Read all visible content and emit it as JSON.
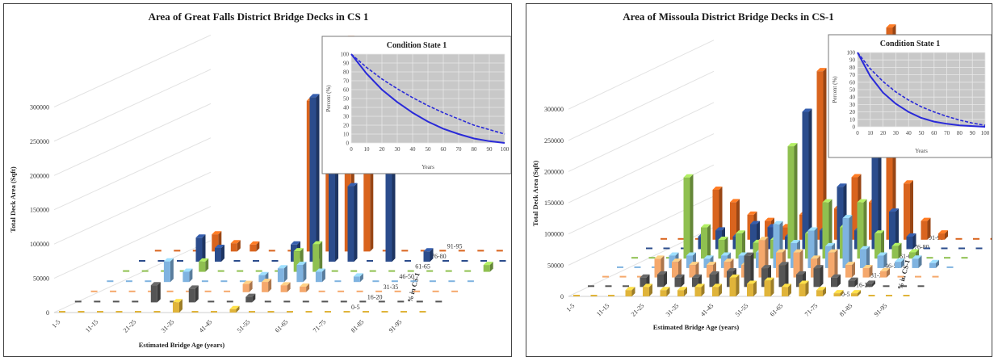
{
  "chart_data": [
    {
      "type": "bar",
      "title": "Area of Great Falls District  Bridge Decks in CS 1",
      "ylabel": "Total Deck Area (Sqft)",
      "xlabel": "Estimated Bridge Age (years)",
      "zlabel": "% in CS-1",
      "yticks": [
        "0",
        "50000",
        "100000",
        "150000",
        "200000",
        "250000",
        "300000"
      ],
      "ylim": [
        0,
        330000
      ],
      "age_categories": [
        "1-5",
        "11-15",
        "21-25",
        "31-35",
        "41-45",
        "51-55",
        "61-65",
        "71-75",
        "81-85",
        "91-95"
      ],
      "cs_categories": [
        "0-5",
        "16-20",
        "31-35",
        "46-50",
        "61-65",
        "76-80",
        "91-95"
      ],
      "series": [
        {
          "cs": "91-95",
          "color": "#d9641e",
          "values": [
            0,
            0,
            0,
            25000,
            12000,
            10000,
            0,
            0,
            220000,
            300000,
            310000,
            245000,
            0,
            0,
            0,
            0,
            0,
            0,
            0,
            45000
          ]
        },
        {
          "cs": "76-80",
          "color": "#2b4c8c",
          "values": [
            0,
            0,
            0,
            35000,
            20000,
            0,
            0,
            0,
            25000,
            240000,
            160000,
            110000,
            0,
            150000,
            0,
            15000,
            0,
            0,
            0,
            0
          ]
        },
        {
          "cs": "61-65",
          "color": "#8fc050",
          "values": [
            0,
            0,
            0,
            0,
            15000,
            0,
            0,
            0,
            0,
            30000,
            40000,
            0,
            0,
            0,
            0,
            0,
            0,
            0,
            0,
            10000
          ]
        },
        {
          "cs": "46-50",
          "color": "#7fb3e0",
          "values": [
            0,
            0,
            0,
            30000,
            15000,
            0,
            0,
            0,
            10000,
            20000,
            25000,
            15000,
            0,
            8000,
            0,
            0,
            0,
            0,
            0,
            0
          ]
        },
        {
          "cs": "31-35",
          "color": "#f5a86c",
          "values": [
            0,
            0,
            0,
            0,
            0,
            0,
            0,
            0,
            12000,
            15000,
            10000,
            8000,
            0,
            0,
            0,
            0,
            0,
            0,
            0,
            0
          ]
        },
        {
          "cs": "16-20",
          "color": "#555555",
          "values": [
            0,
            0,
            0,
            0,
            25000,
            0,
            20000,
            0,
            0,
            8000,
            0,
            0,
            0,
            0,
            0,
            0,
            0,
            0,
            0,
            0
          ]
        },
        {
          "cs": "0-5",
          "color": "#e0b43a",
          "values": [
            0,
            0,
            0,
            0,
            0,
            0,
            15000,
            0,
            0,
            5000,
            0,
            0,
            0,
            0,
            0,
            0,
            0,
            0,
            0,
            0
          ]
        }
      ],
      "inset": {
        "title": "Condition State 1",
        "xlabel": "Years",
        "ylabel": "Percent (%)",
        "xticks": [
          "0",
          "10",
          "20",
          "30",
          "40",
          "50",
          "60",
          "70",
          "80",
          "90",
          "100"
        ],
        "yticks": [
          "0",
          "10",
          "20",
          "30",
          "40",
          "50",
          "60",
          "70",
          "80",
          "90",
          "100"
        ],
        "x": [
          0,
          10,
          20,
          30,
          40,
          50,
          60,
          70,
          80,
          90,
          100
        ],
        "solid": [
          100,
          78,
          60,
          46,
          34,
          24,
          16,
          10,
          5,
          2,
          0
        ],
        "dashed": [
          100,
          85,
          72,
          61,
          51,
          42,
          34,
          27,
          20,
          15,
          10
        ]
      }
    },
    {
      "type": "bar",
      "title": "Area of Missoula  District  Bridge Decks in CS-1",
      "ylabel": "Total Deck Area (Sqft)",
      "xlabel": "Estimated  Bridge Age (years)",
      "zlabel": "% in CS-1",
      "yticks": [
        "0",
        "50000",
        "100000",
        "150000",
        "200000",
        "250000",
        "300000"
      ],
      "ylim": [
        0,
        330000
      ],
      "age_categories": [
        "1-5",
        "11-15",
        "21-25",
        "31-35",
        "41-45",
        "51-55",
        "61-65",
        "71-75",
        "81-85",
        "91-95"
      ],
      "cs_categories": [
        "0-5",
        "16-20",
        "31-35",
        "46-50",
        "61-65",
        "76-80",
        "91-95"
      ],
      "series": [
        {
          "cs": "91-95",
          "color": "#d9641e",
          "values": [
            0,
            0,
            0,
            80000,
            60000,
            40000,
            30000,
            20000,
            40000,
            270000,
            50000,
            100000,
            60000,
            340000,
            90000,
            30000,
            10000,
            0,
            0,
            0
          ]
        },
        {
          "cs": "76-80",
          "color": "#2b4c8c",
          "values": [
            0,
            0,
            0,
            20000,
            30000,
            20000,
            40000,
            35000,
            20000,
            220000,
            30000,
            100000,
            30000,
            170000,
            60000,
            20000,
            0,
            0,
            0,
            0
          ]
        },
        {
          "cs": "61-65",
          "color": "#8fc050",
          "values": [
            0,
            0,
            0,
            130000,
            50000,
            30000,
            40000,
            25000,
            30000,
            180000,
            40000,
            90000,
            50000,
            90000,
            40000,
            20000,
            10000,
            0,
            0,
            0
          ]
        },
        {
          "cs": "46-50",
          "color": "#7fb3e0",
          "values": [
            0,
            0,
            0,
            20000,
            20000,
            15000,
            20000,
            20000,
            25000,
            70000,
            40000,
            60000,
            35000,
            80000,
            30000,
            20000,
            10000,
            15000,
            8000,
            0
          ]
        },
        {
          "cs": "31-35",
          "color": "#f5a86c",
          "values": [
            0,
            0,
            0,
            30000,
            25000,
            20000,
            20000,
            25000,
            20000,
            60000,
            40000,
            40000,
            30000,
            40000,
            20000,
            15000,
            10000,
            0,
            0,
            0
          ]
        },
        {
          "cs": "16-20",
          "color": "#555555",
          "values": [
            0,
            0,
            0,
            15000,
            20000,
            15000,
            15000,
            20000,
            25000,
            50000,
            30000,
            35000,
            20000,
            30000,
            15000,
            10000,
            5000,
            0,
            0,
            0
          ]
        },
        {
          "cs": "0-5",
          "color": "#e0b43a",
          "values": [
            0,
            0,
            0,
            10000,
            15000,
            10000,
            10000,
            15000,
            15000,
            30000,
            20000,
            25000,
            15000,
            20000,
            10000,
            5000,
            5000,
            0,
            0,
            0
          ]
        }
      ],
      "inset": {
        "title": "Condition State 1",
        "xlabel": "Years",
        "ylabel": "Percent (%)",
        "xticks": [
          "0",
          "10",
          "20",
          "30",
          "40",
          "50",
          "60",
          "70",
          "80",
          "90",
          "100"
        ],
        "yticks": [
          "0",
          "10",
          "20",
          "30",
          "40",
          "50",
          "60",
          "70",
          "80",
          "90",
          "100"
        ],
        "x": [
          0,
          10,
          20,
          30,
          40,
          50,
          60,
          70,
          80,
          90,
          100
        ],
        "solid": [
          100,
          68,
          46,
          31,
          20,
          12,
          7,
          4,
          2,
          1,
          0
        ],
        "dashed": [
          100,
          78,
          61,
          47,
          36,
          27,
          20,
          14,
          9,
          5,
          2
        ]
      }
    }
  ]
}
